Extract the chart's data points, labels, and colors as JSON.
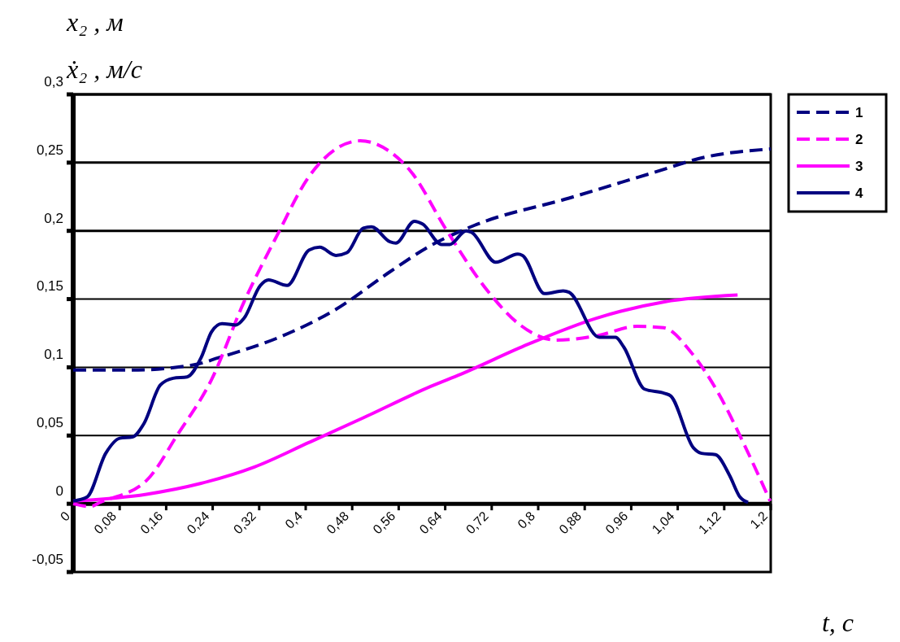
{
  "chart_data": {
    "type": "line",
    "ylabel": "x₂ ,  м\nẋ₂ ,  м/с",
    "xlabel": "t, с",
    "xlim": [
      0,
      1.2
    ],
    "ylim": [
      -0.05,
      0.3
    ],
    "xticks": [
      0,
      {
        "value": 0.08,
        "label": "0,08"
      },
      {
        "value": 0.16,
        "label": "0,16"
      },
      {
        "value": 0.24,
        "label": "0,24"
      },
      {
        "value": 0.32,
        "label": "0,32"
      },
      {
        "value": 0.4,
        "label": "0,4"
      },
      {
        "value": 0.48,
        "label": "0,48"
      },
      {
        "value": 0.56,
        "label": "0,56"
      },
      {
        "value": 0.64,
        "label": "0,64"
      },
      {
        "value": 0.72,
        "label": "0,72"
      },
      {
        "value": 0.8,
        "label": "0,8"
      },
      {
        "value": 0.88,
        "label": "0,88"
      },
      {
        "value": 0.96,
        "label": "0,96"
      },
      {
        "value": 1.04,
        "label": "1,04"
      },
      {
        "value": 1.12,
        "label": "1,12"
      },
      {
        "value": 1.2,
        "label": "1,2"
      }
    ],
    "yticks": [
      {
        "value": -0.05,
        "label": "-0,05"
      },
      0,
      {
        "value": 0.05,
        "label": "0,05"
      },
      {
        "value": 0.1,
        "label": "0,1"
      },
      {
        "value": 0.15,
        "label": "0,15"
      },
      {
        "value": 0.2,
        "label": "0,2"
      },
      {
        "value": 0.25,
        "label": "0,25"
      },
      {
        "value": 0.3,
        "label": "0,3"
      }
    ],
    "grid": "y",
    "legend": "top right",
    "marker": "none",
    "series": [
      {
        "name": "1",
        "color": "#000080",
        "line_style": "dashed",
        "x": [
          0,
          0.1,
          0.21,
          0.25,
          0.36,
          0.45,
          0.545,
          0.61,
          0.69,
          0.853,
          0.993,
          1.087,
          1.2
        ],
        "values": [
          0.098,
          0.098,
          0.102,
          0.107,
          0.123,
          0.142,
          0.17,
          0.188,
          0.204,
          0.224,
          0.242,
          0.254,
          0.26
        ]
      },
      {
        "name": "2",
        "color": "#ff00ff",
        "line_style": "dashed",
        "x": [
          0,
          0.03,
          0.046,
          0.126,
          0.18,
          0.238,
          0.294,
          0.35,
          0.406,
          0.452,
          0.494,
          0.545,
          0.58,
          0.643,
          0.713,
          0.769,
          0.83,
          0.9,
          0.97,
          1.016,
          1.063,
          1.11,
          1.157,
          1.199
        ],
        "values": [
          0,
          -0.002,
          0.001,
          0.017,
          0.051,
          0.091,
          0.148,
          0.196,
          0.24,
          0.26,
          0.266,
          0.258,
          0.244,
          0.2,
          0.156,
          0.131,
          0.12,
          0.123,
          0.13,
          0.129,
          0.111,
          0.081,
          0.041,
          0.002
        ]
      },
      {
        "name": "3",
        "color": "#ff00ff",
        "line_style": "solid",
        "x": [
          0,
          0.126,
          0.22,
          0.312,
          0.406,
          0.499,
          0.615,
          0.667,
          0.783,
          0.9,
          1.017,
          1.143
        ],
        "values": [
          0.002,
          0.007,
          0.015,
          0.027,
          0.045,
          0.063,
          0.086,
          0.095,
          0.117,
          0.136,
          0.148,
          0.153
        ]
      },
      {
        "name": "4",
        "color": "#000080",
        "line_style": "solid",
        "x": [
          0,
          0.024,
          0.056,
          0.08,
          0.102,
          0.122,
          0.15,
          0.172,
          0.196,
          0.22,
          0.238,
          0.256,
          0.28,
          0.294,
          0.322,
          0.336,
          0.368,
          0.406,
          0.424,
          0.452,
          0.471,
          0.499,
          0.513,
          0.545,
          0.555,
          0.587,
          0.601,
          0.634,
          0.648,
          0.676,
          0.685,
          0.727,
          0.765,
          0.773,
          0.811,
          0.843,
          0.853,
          0.905,
          0.933,
          0.947,
          0.983,
          1.017,
          1.028,
          1.067,
          1.081,
          1.105,
          1.129,
          1.147,
          1.161
        ],
        "values": [
          0.002,
          0.005,
          0.037,
          0.048,
          0.049,
          0.059,
          0.087,
          0.092,
          0.093,
          0.107,
          0.126,
          0.132,
          0.131,
          0.136,
          0.16,
          0.164,
          0.16,
          0.186,
          0.188,
          0.182,
          0.184,
          0.202,
          0.203,
          0.192,
          0.191,
          0.207,
          0.205,
          0.19,
          0.19,
          0.2,
          0.199,
          0.177,
          0.183,
          0.182,
          0.154,
          0.156,
          0.155,
          0.122,
          0.122,
          0.115,
          0.084,
          0.081,
          0.079,
          0.041,
          0.037,
          0.036,
          0.021,
          0.005,
          0.001
        ]
      }
    ]
  }
}
